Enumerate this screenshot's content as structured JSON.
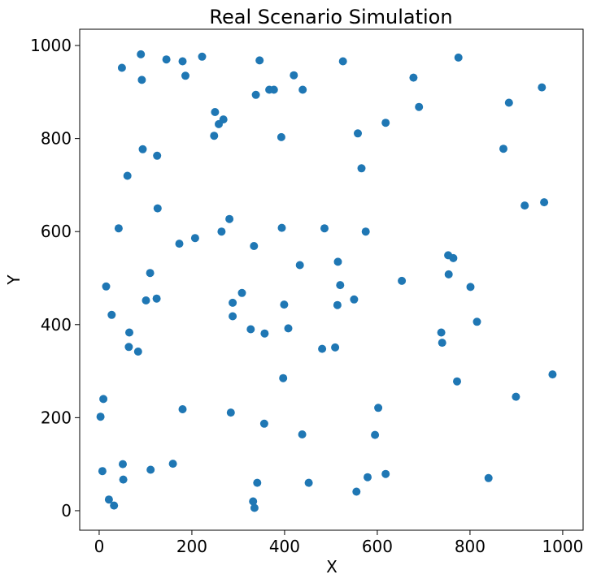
{
  "chart_data": {
    "type": "scatter",
    "title": "Real Scenario Simulation",
    "xlabel": "X",
    "ylabel": "Y",
    "xlim": [
      -42,
      1044
    ],
    "ylim": [
      -42,
      1035
    ],
    "xticks": [
      0,
      200,
      400,
      600,
      800,
      1000
    ],
    "yticks": [
      0,
      200,
      400,
      600,
      800,
      1000
    ],
    "grid": false,
    "marker_color": "#1f77b4",
    "series": [
      {
        "points": [
          [
            49,
            952
          ],
          [
            90,
            981
          ],
          [
            92,
            926
          ],
          [
            145,
            970
          ],
          [
            180,
            966
          ],
          [
            186,
            935
          ],
          [
            222,
            976
          ],
          [
            346,
            968
          ],
          [
            338,
            894
          ],
          [
            367,
            905
          ],
          [
            377,
            905
          ],
          [
            420,
            936
          ],
          [
            439,
            905
          ],
          [
            526,
            966
          ],
          [
            678,
            931
          ],
          [
            690,
            868
          ],
          [
            775,
            974
          ],
          [
            884,
            877
          ],
          [
            955,
            910
          ],
          [
            250,
            857
          ],
          [
            268,
            841
          ],
          [
            258,
            831
          ],
          [
            248,
            806
          ],
          [
            393,
            803
          ],
          [
            558,
            811
          ],
          [
            618,
            834
          ],
          [
            94,
            777
          ],
          [
            125,
            763
          ],
          [
            61,
            720
          ],
          [
            566,
            736
          ],
          [
            872,
            778
          ],
          [
            918,
            656
          ],
          [
            960,
            663
          ],
          [
            126,
            650
          ],
          [
            42,
            607
          ],
          [
            281,
            627
          ],
          [
            394,
            608
          ],
          [
            486,
            607
          ],
          [
            575,
            600
          ],
          [
            173,
            574
          ],
          [
            207,
            586
          ],
          [
            264,
            600
          ],
          [
            334,
            569
          ],
          [
            110,
            511
          ],
          [
            433,
            528
          ],
          [
            515,
            535
          ],
          [
            753,
            549
          ],
          [
            764,
            543
          ],
          [
            754,
            508
          ],
          [
            653,
            494
          ],
          [
            801,
            481
          ],
          [
            15,
            482
          ],
          [
            520,
            485
          ],
          [
            308,
            468
          ],
          [
            101,
            452
          ],
          [
            124,
            456
          ],
          [
            288,
            447
          ],
          [
            399,
            443
          ],
          [
            514,
            442
          ],
          [
            550,
            454
          ],
          [
            27,
            421
          ],
          [
            288,
            418
          ],
          [
            65,
            383
          ],
          [
            327,
            390
          ],
          [
            357,
            381
          ],
          [
            408,
            392
          ],
          [
            815,
            406
          ],
          [
            738,
            383
          ],
          [
            740,
            361
          ],
          [
            64,
            352
          ],
          [
            84,
            342
          ],
          [
            481,
            348
          ],
          [
            509,
            351
          ],
          [
            397,
            285
          ],
          [
            772,
            278
          ],
          [
            978,
            293
          ],
          [
            9,
            240
          ],
          [
            3,
            202
          ],
          [
            180,
            218
          ],
          [
            284,
            211
          ],
          [
            356,
            187
          ],
          [
            602,
            221
          ],
          [
            899,
            245
          ],
          [
            438,
            164
          ],
          [
            595,
            163
          ],
          [
            51,
            100
          ],
          [
            159,
            101
          ],
          [
            7,
            85
          ],
          [
            111,
            88
          ],
          [
            52,
            67
          ],
          [
            21,
            24
          ],
          [
            32,
            11
          ],
          [
            341,
            60
          ],
          [
            332,
            20
          ],
          [
            335,
            6
          ],
          [
            452,
            60
          ],
          [
            579,
            72
          ],
          [
            618,
            79
          ],
          [
            555,
            41
          ],
          [
            840,
            70
          ]
        ]
      }
    ]
  }
}
